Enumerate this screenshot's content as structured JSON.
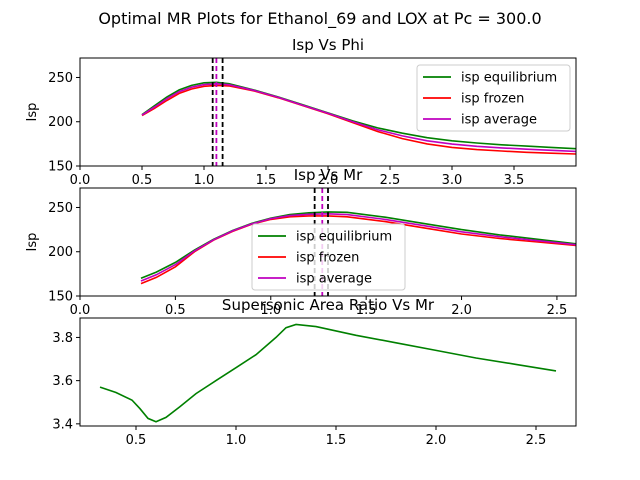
{
  "figure": {
    "suptitle": "Optimal MR Plots for Ethanol_69 and LOX at Pc = 300.0"
  },
  "chart_data": [
    {
      "type": "line",
      "title": "Isp Vs Phi",
      "xlabel": "",
      "ylabel": "Isp",
      "xlim": [
        0.0,
        4.0
      ],
      "ylim": [
        150,
        272
      ],
      "xticks": [
        0.0,
        0.5,
        1.0,
        1.5,
        2.0,
        2.5,
        3.0,
        3.5
      ],
      "xtick_labels": [
        "0.0",
        "0.5",
        "1.0",
        "1.5",
        "2.0",
        "2.5",
        "3.0",
        "3.5"
      ],
      "yticks": [
        150,
        200,
        250
      ],
      "ytick_labels": [
        "150",
        "200",
        "250"
      ],
      "legend": "top-right",
      "grid": false,
      "x": [
        0.5,
        0.6,
        0.7,
        0.8,
        0.9,
        1.0,
        1.1,
        1.2,
        1.4,
        1.6,
        1.8,
        2.0,
        2.2,
        2.4,
        2.6,
        2.8,
        3.0,
        3.2,
        3.4,
        3.6,
        3.8,
        4.0
      ],
      "series": [
        {
          "name": "isp equilibrium",
          "color": "#008000",
          "values": [
            208,
            218,
            228,
            236,
            241,
            244,
            244.5,
            243,
            236,
            228,
            219,
            210,
            201,
            193,
            187,
            182,
            178.5,
            176,
            174,
            172.5,
            171,
            169.5
          ]
        },
        {
          "name": "isp frozen",
          "color": "#ff0000",
          "values": [
            207,
            215,
            224,
            232,
            237,
            240,
            241,
            240.5,
            235,
            227,
            218,
            209,
            199,
            189,
            181,
            175,
            171,
            168.5,
            167,
            165.5,
            164.5,
            163.5
          ]
        },
        {
          "name": "isp average",
          "color": "#bf00bf",
          "values": [
            207.5,
            216.5,
            226,
            234,
            239,
            242,
            242.8,
            241.8,
            235.5,
            227.5,
            218.5,
            209.5,
            200,
            191,
            184,
            178.5,
            174.7,
            172.2,
            170.5,
            169,
            167.7,
            166.5
          ]
        }
      ],
      "vlines": [
        {
          "x": 1.07,
          "color": "#000000"
        },
        {
          "x": 1.1,
          "color": "#bf00bf"
        },
        {
          "x": 1.15,
          "color": "#000000"
        }
      ]
    },
    {
      "type": "line",
      "title": "Isp Vs Mr",
      "xlabel": "",
      "ylabel": "Isp",
      "xlim": [
        0.0,
        2.6
      ],
      "ylim": [
        150,
        272
      ],
      "xticks": [
        0.0,
        0.5,
        1.0,
        1.5,
        2.0,
        2.5
      ],
      "xtick_labels": [
        "0.0",
        "0.5",
        "1.0",
        "1.5",
        "2.0",
        "2.5"
      ],
      "yticks": [
        150,
        200,
        250
      ],
      "ytick_labels": [
        "150",
        "200",
        "250"
      ],
      "legend": "lower-center",
      "grid": false,
      "x": [
        0.32,
        0.4,
        0.5,
        0.6,
        0.7,
        0.8,
        0.9,
        1.0,
        1.1,
        1.2,
        1.3,
        1.4,
        1.6,
        1.8,
        2.0,
        2.2,
        2.4,
        2.6
      ],
      "series": [
        {
          "name": "isp equilibrium",
          "color": "#008000",
          "values": [
            170,
            177,
            188,
            202,
            214,
            224,
            232,
            238,
            242,
            244,
            245,
            244.5,
            239,
            232,
            225,
            219,
            214,
            209
          ]
        },
        {
          "name": "isp frozen",
          "color": "#ff0000",
          "values": [
            164,
            171,
            183,
            200,
            213,
            223,
            231,
            236.5,
            239.5,
            240.5,
            240.5,
            239.5,
            234,
            227,
            220,
            215,
            211,
            207
          ]
        },
        {
          "name": "isp average",
          "color": "#bf00bf",
          "values": [
            167,
            174,
            185.5,
            201,
            213.5,
            223.5,
            231.5,
            237.3,
            240.8,
            242.3,
            242.8,
            242,
            236.5,
            229.5,
            222.5,
            217,
            212.5,
            208
          ]
        }
      ],
      "vlines": [
        {
          "x": 1.23,
          "color": "#000000"
        },
        {
          "x": 1.27,
          "color": "#bf00bf"
        },
        {
          "x": 1.3,
          "color": "#000000"
        }
      ]
    },
    {
      "type": "line",
      "title": "Supersonic Area Ratio Vs Mr",
      "xlabel": "",
      "ylabel": "",
      "xlim": [
        0.22,
        2.7
      ],
      "ylim": [
        3.39,
        3.89
      ],
      "xticks": [
        0.5,
        1.0,
        1.5,
        2.0,
        2.5
      ],
      "xtick_labels": [
        "0.5",
        "1.0",
        "1.5",
        "2.0",
        "2.5"
      ],
      "yticks": [
        3.4,
        3.6,
        3.8
      ],
      "ytick_labels": [
        "3.4",
        "3.6",
        "3.8"
      ],
      "legend": "none",
      "grid": false,
      "x": [
        0.32,
        0.4,
        0.48,
        0.52,
        0.56,
        0.6,
        0.65,
        0.72,
        0.8,
        0.9,
        1.0,
        1.1,
        1.2,
        1.25,
        1.3,
        1.4,
        1.6,
        1.8,
        2.0,
        2.2,
        2.4,
        2.6
      ],
      "series": [
        {
          "name": "",
          "color": "#008000",
          "values": [
            3.57,
            3.545,
            3.51,
            3.47,
            3.425,
            3.41,
            3.43,
            3.48,
            3.54,
            3.6,
            3.66,
            3.72,
            3.8,
            3.845,
            3.86,
            3.85,
            3.81,
            3.775,
            3.74,
            3.705,
            3.675,
            3.645
          ]
        }
      ],
      "vlines": []
    }
  ]
}
